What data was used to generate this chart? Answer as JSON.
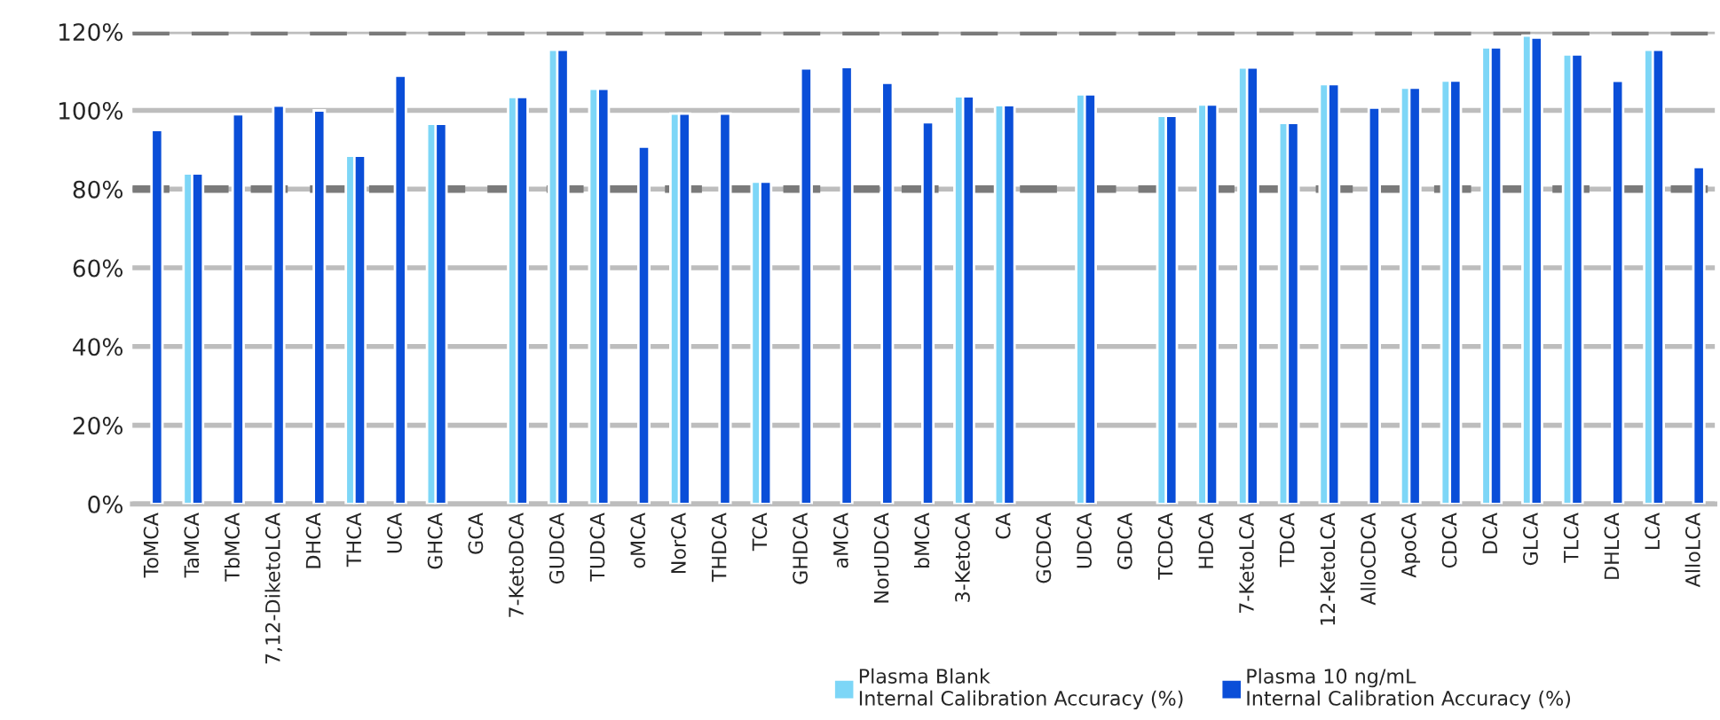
{
  "chart_data": {
    "type": "bar",
    "categories": [
      "ToMCA",
      "TaMCA",
      "TbMCA",
      "7,12-DiketoLCA",
      "DHCA",
      "THCA",
      "UCA",
      "GHCA",
      "GCA",
      "7-KetoDCA",
      "GUDCA",
      "TUDCA",
      "oMCA",
      "NorCA",
      "THDCA",
      "TCA",
      "GHDCA",
      "aMCA",
      "NorUDCA",
      "bMCA",
      "3-KetoCA",
      "CA",
      "GCDCA",
      "UDCA",
      "GDCA",
      "TCDCA",
      "HDCA",
      "7-KetoLCA",
      "TDCA",
      "12-KetoLCA",
      "AlloCDCA",
      "ApoCA",
      "CDCA",
      "DCA",
      "GLCA",
      "TLCA",
      "DHLCA",
      "LCA",
      "AlloLCA"
    ],
    "series": [
      {
        "name": "Plasma Blank\nInternal Calibration Accuracy (%)",
        "color": "#7dd6f7",
        "values": [
          null,
          84,
          null,
          null,
          null,
          88.5,
          null,
          96.6,
          null,
          103.4,
          115.4,
          105.5,
          null,
          99.2,
          null,
          81.9,
          null,
          null,
          null,
          null,
          103.6,
          101.3,
          null,
          104.1,
          null,
          98.6,
          101.5,
          110.9,
          96.8,
          106.7,
          null,
          105.8,
          107.6,
          116,
          119,
          114.2,
          null,
          115.4,
          null
        ]
      },
      {
        "name": "Plasma 10 ng/mL\nInternal Calibration Accuracy (%)",
        "color": "#0a4ed8",
        "values": [
          95,
          84,
          99,
          101.2,
          100,
          88.5,
          108.8,
          96.6,
          null,
          103.4,
          115.4,
          105.5,
          90.8,
          99.2,
          99.2,
          81.9,
          110.7,
          111,
          107,
          97,
          103.6,
          101.3,
          null,
          104.1,
          null,
          98.6,
          101.5,
          110.9,
          96.8,
          106.7,
          100.7,
          105.8,
          107.6,
          116,
          118.5,
          114.2,
          107.5,
          115.4,
          85.6
        ]
      }
    ],
    "ylim": [
      0,
      120
    ],
    "yticks": [
      {
        "value": 0,
        "label": "0%"
      },
      {
        "value": 20,
        "label": "20%"
      },
      {
        "value": 40,
        "label": "40%"
      },
      {
        "value": 60,
        "label": "60%"
      },
      {
        "value": 80,
        "label": "80%"
      },
      {
        "value": 100,
        "label": "100%"
      },
      {
        "value": 120,
        "label": "120%"
      }
    ],
    "grid": "y",
    "ref_lines": [
      {
        "axis": "y",
        "value": 80,
        "color": "#7a7a7a",
        "line_style": "dashed"
      },
      {
        "axis": "y",
        "value": 120,
        "color": "#7a7a7a",
        "line_style": "dashed"
      }
    ],
    "legend": "bottom"
  }
}
